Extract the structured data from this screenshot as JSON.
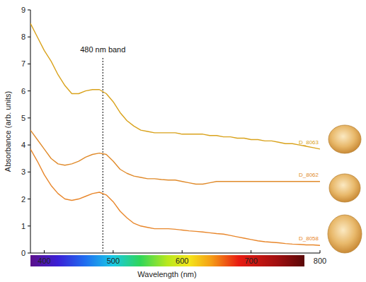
{
  "chart_data": {
    "type": "line",
    "x_label": "Wavelength (nm)",
    "y_label": "Absorbance  (arb. units)",
    "annotations": [
      {
        "text": "480 nm band",
        "x": 485
      }
    ],
    "x": [
      380,
      390,
      400,
      410,
      420,
      430,
      440,
      450,
      460,
      470,
      480,
      490,
      500,
      510,
      520,
      530,
      540,
      550,
      560,
      570,
      580,
      590,
      600,
      610,
      620,
      630,
      640,
      650,
      660,
      670,
      680,
      690,
      700,
      710,
      720,
      730,
      740,
      750,
      760,
      770,
      780,
      790,
      800
    ],
    "xlim": [
      380,
      800
    ],
    "xticks": [
      400,
      500,
      600,
      700,
      800
    ],
    "ylim": [
      0,
      9
    ],
    "yticks": [
      0,
      1,
      2,
      3,
      4,
      5,
      6,
      7,
      8,
      9
    ],
    "grid": false,
    "series": [
      {
        "name": "D_8063",
        "color": "#d9a21b",
        "values": [
          8.5,
          8.0,
          7.5,
          7.1,
          6.6,
          6.2,
          5.9,
          5.9,
          6.0,
          6.05,
          6.05,
          5.9,
          5.6,
          5.2,
          4.9,
          4.7,
          4.55,
          4.5,
          4.45,
          4.45,
          4.45,
          4.45,
          4.4,
          4.4,
          4.4,
          4.4,
          4.35,
          4.35,
          4.3,
          4.3,
          4.25,
          4.25,
          4.2,
          4.2,
          4.15,
          4.15,
          4.1,
          4.05,
          4.05,
          4.0,
          3.95,
          3.9,
          3.85
        ]
      },
      {
        "name": "D_8062",
        "color": "#e08a2a",
        "values": [
          4.55,
          4.2,
          3.85,
          3.5,
          3.3,
          3.25,
          3.3,
          3.4,
          3.55,
          3.65,
          3.7,
          3.65,
          3.4,
          3.1,
          2.95,
          2.85,
          2.8,
          2.75,
          2.75,
          2.72,
          2.7,
          2.7,
          2.65,
          2.6,
          2.55,
          2.55,
          2.6,
          2.65,
          2.65,
          2.65,
          2.65,
          2.65,
          2.65,
          2.65,
          2.65,
          2.65,
          2.65,
          2.65,
          2.65,
          2.65,
          2.65,
          2.65,
          2.65
        ]
      },
      {
        "name": "D_8058",
        "color": "#e8862a",
        "values": [
          3.85,
          3.4,
          2.9,
          2.5,
          2.2,
          2.0,
          1.95,
          2.0,
          2.1,
          2.2,
          2.25,
          2.15,
          1.9,
          1.55,
          1.3,
          1.1,
          1.0,
          0.95,
          0.9,
          0.9,
          0.9,
          0.88,
          0.85,
          0.82,
          0.8,
          0.78,
          0.75,
          0.72,
          0.7,
          0.65,
          0.6,
          0.55,
          0.5,
          0.45,
          0.42,
          0.4,
          0.38,
          0.35,
          0.33,
          0.32,
          0.3,
          0.3,
          0.28
        ]
      }
    ]
  }
}
